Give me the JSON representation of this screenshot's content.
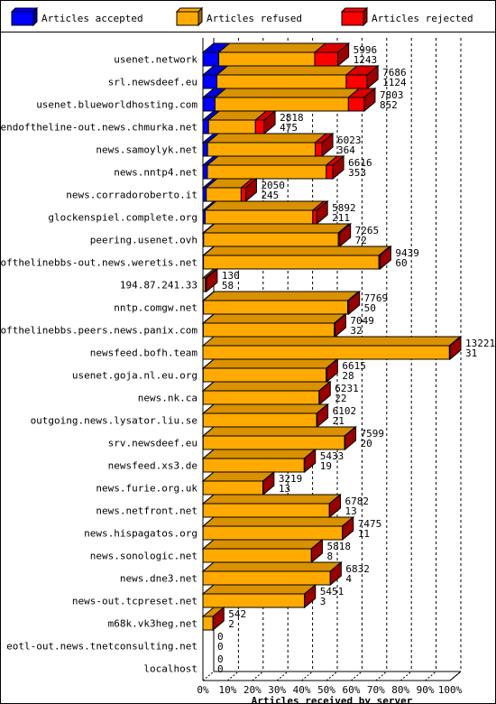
{
  "chart_data": {
    "type": "bar",
    "stacked": true,
    "orientation": "horizontal",
    "xlabel": "Articles received by server",
    "xlim_percent": [
      0,
      100
    ],
    "x_ticks": [
      "0%",
      "10%",
      "20%",
      "30%",
      "40%",
      "50%",
      "60%",
      "70%",
      "80%",
      "90%",
      "100%"
    ],
    "max_total": 13252,
    "legend_position": "top",
    "grid": "vertical-dashed",
    "series": [
      {
        "name": "Articles accepted",
        "color": "#0000ff"
      },
      {
        "name": "Articles refused",
        "color": "#ffaa00"
      },
      {
        "name": "Articles rejected",
        "color": "#ff0000"
      }
    ],
    "categories": [
      "usenet.network",
      "srl.newsdeef.eu",
      "usenet.blueworldhosting.com",
      "endoftheline-out.news.chmurka.net",
      "news.samoylyk.net",
      "news.nntp4.net",
      "news.corradoroberto.it",
      "glockenspiel.complete.org",
      "peering.usenet.ovh",
      "endofthelinebbs-out.news.weretis.net",
      "194.87.241.33",
      "nntp.comgw.net",
      "endofthelinebbs.peers.news.panix.com",
      "newsfeed.bofh.team",
      "usenet.goja.nl.eu.org",
      "news.nk.ca",
      "outgoing.news.lysator.liu.se",
      "srv.newsdeef.eu",
      "newsfeed.xs3.de",
      "news.furie.org.uk",
      "news.netfront.net",
      "news.hispagatos.org",
      "news.sonologic.net",
      "news.dne3.net",
      "news-out.tcpreset.net",
      "m68k.vk3heg.net",
      "eotl-out.news.tnetconsulting.net",
      "localhost"
    ],
    "label_refused": [
      "5996",
      "7686",
      "7803",
      "2818",
      "6023",
      "6616",
      "2050",
      "5892",
      "7265",
      "9439",
      "130",
      "7769",
      "7049",
      "13221",
      "6615",
      "6231",
      "6102",
      "7599",
      "5433",
      "3219",
      "6782",
      "7475",
      "5818",
      "6832",
      "5451",
      "542",
      "0",
      "0"
    ],
    "label_rejected": [
      "1243",
      "1124",
      "852",
      "475",
      "364",
      "353",
      "245",
      "211",
      "72",
      "60",
      "58",
      "50",
      "32",
      "31",
      "28",
      "22",
      "21",
      "20",
      "19",
      "13",
      "13",
      "11",
      "8",
      "4",
      "3",
      "2",
      "0",
      "0"
    ],
    "accepted": [
      850,
      750,
      650,
      300,
      250,
      240,
      180,
      120,
      40,
      30,
      10,
      30,
      20,
      0,
      15,
      12,
      10,
      12,
      10,
      8,
      8,
      6,
      5,
      3,
      2,
      0,
      0,
      0
    ],
    "refused": [
      5146,
      6936,
      7153,
      2518,
      5773,
      6376,
      1870,
      5772,
      7225,
      9409,
      120,
      7739,
      7029,
      13221,
      6600,
      6219,
      6092,
      7587,
      5423,
      3211,
      6774,
      7469,
      5813,
      6829,
      5449,
      542,
      0,
      0
    ],
    "rejected": [
      1243,
      1124,
      852,
      475,
      364,
      353,
      245,
      211,
      72,
      60,
      58,
      50,
      32,
      31,
      28,
      22,
      21,
      20,
      19,
      13,
      13,
      11,
      8,
      4,
      3,
      2,
      0,
      0
    ]
  }
}
